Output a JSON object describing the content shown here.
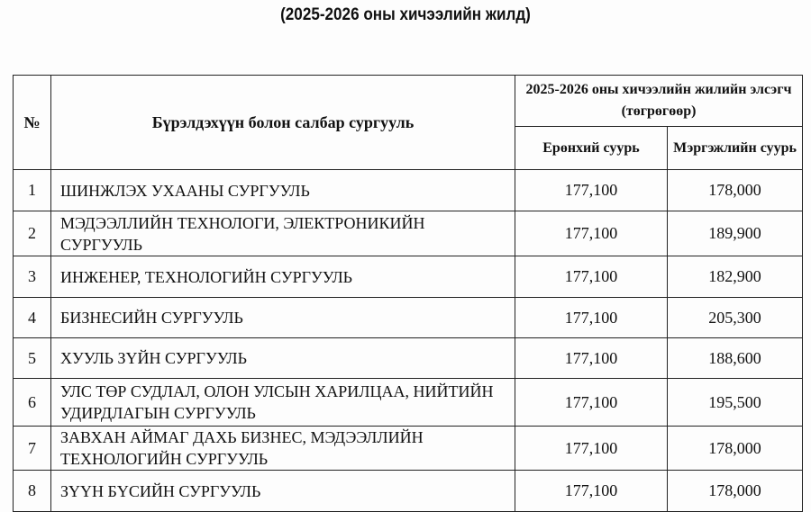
{
  "title": "(2025-2026 оны хичээлийн жилд)",
  "table": {
    "headers": {
      "no": "№",
      "name": "Бүрэлдэхүүн болон салбар сургууль",
      "fee_group": "2025-2026 оны хичээлийн жилийн элсэгч (төгрөгөөр)",
      "general": "Ерөнхий суурь",
      "professional": "Мэргэжлийн суурь"
    },
    "rows": [
      {
        "no": "1",
        "name": "ШИНЖЛЭХ УХААНЫ СУРГУУЛЬ",
        "general": "177,100",
        "professional": "178,000"
      },
      {
        "no": "2",
        "name": "МЭДЭЭЛЛИЙН ТЕХНОЛОГИ, ЭЛЕКТРОНИКИЙН СУРГУУЛЬ",
        "general": "177,100",
        "professional": "189,900"
      },
      {
        "no": "3",
        "name": "ИНЖЕНЕР, ТЕХНОЛОГИЙН СУРГУУЛЬ",
        "general": "177,100",
        "professional": "182,900"
      },
      {
        "no": "4",
        "name": "БИЗНЕСИЙН СУРГУУЛЬ",
        "general": "177,100",
        "professional": "205,300"
      },
      {
        "no": "5",
        "name": "ХУУЛЬ ЗҮЙН СУРГУУЛЬ",
        "general": "177,100",
        "professional": "188,600"
      },
      {
        "no": "6",
        "name": "УЛС ТӨР СУДЛАЛ, ОЛОН УЛСЫН ХАРИЛЦАА, НИЙТИЙН УДИРДЛАГЫН СУРГУУЛЬ",
        "general": "177,100",
        "professional": "195,500"
      },
      {
        "no": "7",
        "name": "ЗАВХАН АЙМАГ ДАХЬ БИЗНЕС, МЭДЭЭЛЛИЙН ТЕХНОЛОГИЙН СУРГУУЛЬ",
        "general": "177,100",
        "professional": "178,000"
      },
      {
        "no": "8",
        "name": "ЗҮҮН БҮСИЙН СУРГУУЛЬ",
        "general": "177,100",
        "professional": "178,000"
      }
    ]
  }
}
